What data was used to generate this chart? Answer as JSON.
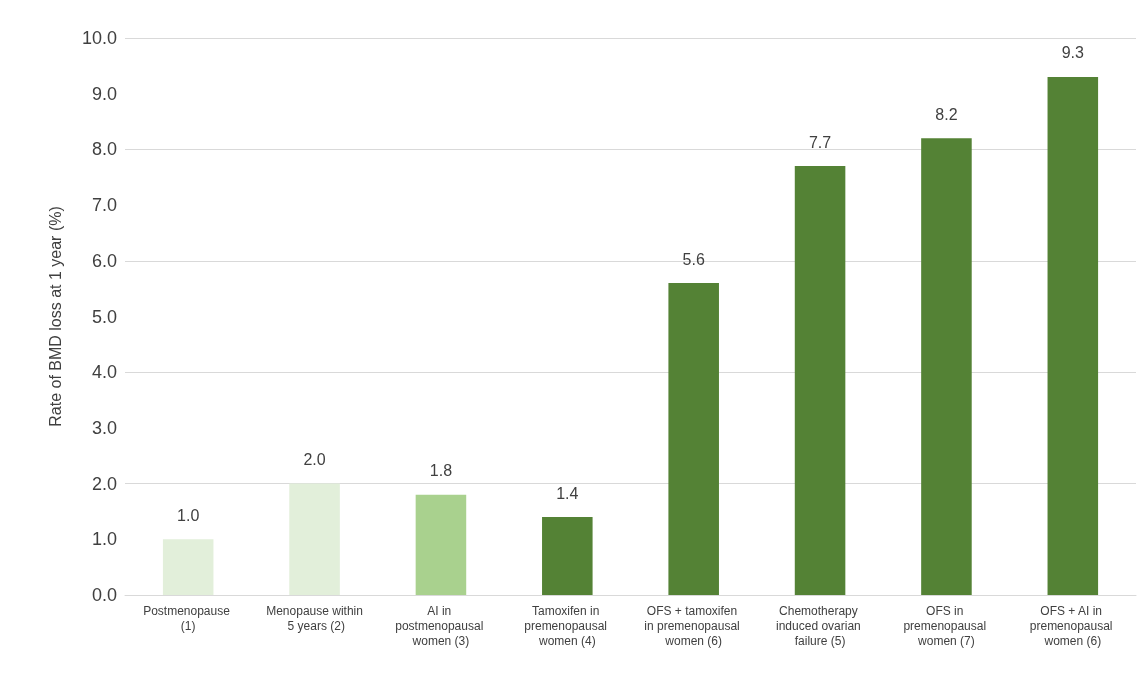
{
  "chart_data": {
    "type": "bar",
    "ylabel": "Rate of BMD loss at 1 year (%)",
    "categories": [
      "Postmenopause (1)",
      "Menopause within 5 years (2)",
      "AI in postmenopausal women (3)",
      "Tamoxifen in premenopausal women (4)",
      "OFS + tamoxifen in premenopausal women (6)",
      "Chemotherapy induced ovarian failure (5)",
      "OFS in premenopausal women (7)",
      "OFS + AI in premenopausal women (6)"
    ],
    "values": [
      1.0,
      2.0,
      1.8,
      1.4,
      5.6,
      7.7,
      8.2,
      9.3
    ],
    "colors": [
      "#e2efda",
      "#e2efda",
      "#a9d18e",
      "#548235",
      "#548235",
      "#548235",
      "#548235",
      "#548235"
    ],
    "ylim": [
      0,
      10
    ],
    "yticks": [
      {
        "value": 0,
        "label": "0.0"
      },
      {
        "value": 1,
        "label": "1.0"
      },
      {
        "value": 2,
        "label": "2.0"
      },
      {
        "value": 3,
        "label": "3.0"
      },
      {
        "value": 4,
        "label": "4.0"
      },
      {
        "value": 5,
        "label": "5.0"
      },
      {
        "value": 6,
        "label": "6.0"
      },
      {
        "value": 7,
        "label": "7.0"
      },
      {
        "value": 8,
        "label": "8.0"
      },
      {
        "value": 9,
        "label": "9.0"
      },
      {
        "value": 10,
        "label": "10.0"
      }
    ],
    "value_labels": [
      "1.0",
      "2.0",
      "1.8",
      "1.4",
      "5.6",
      "7.7",
      "8.2",
      "9.3"
    ],
    "grid": "y"
  }
}
